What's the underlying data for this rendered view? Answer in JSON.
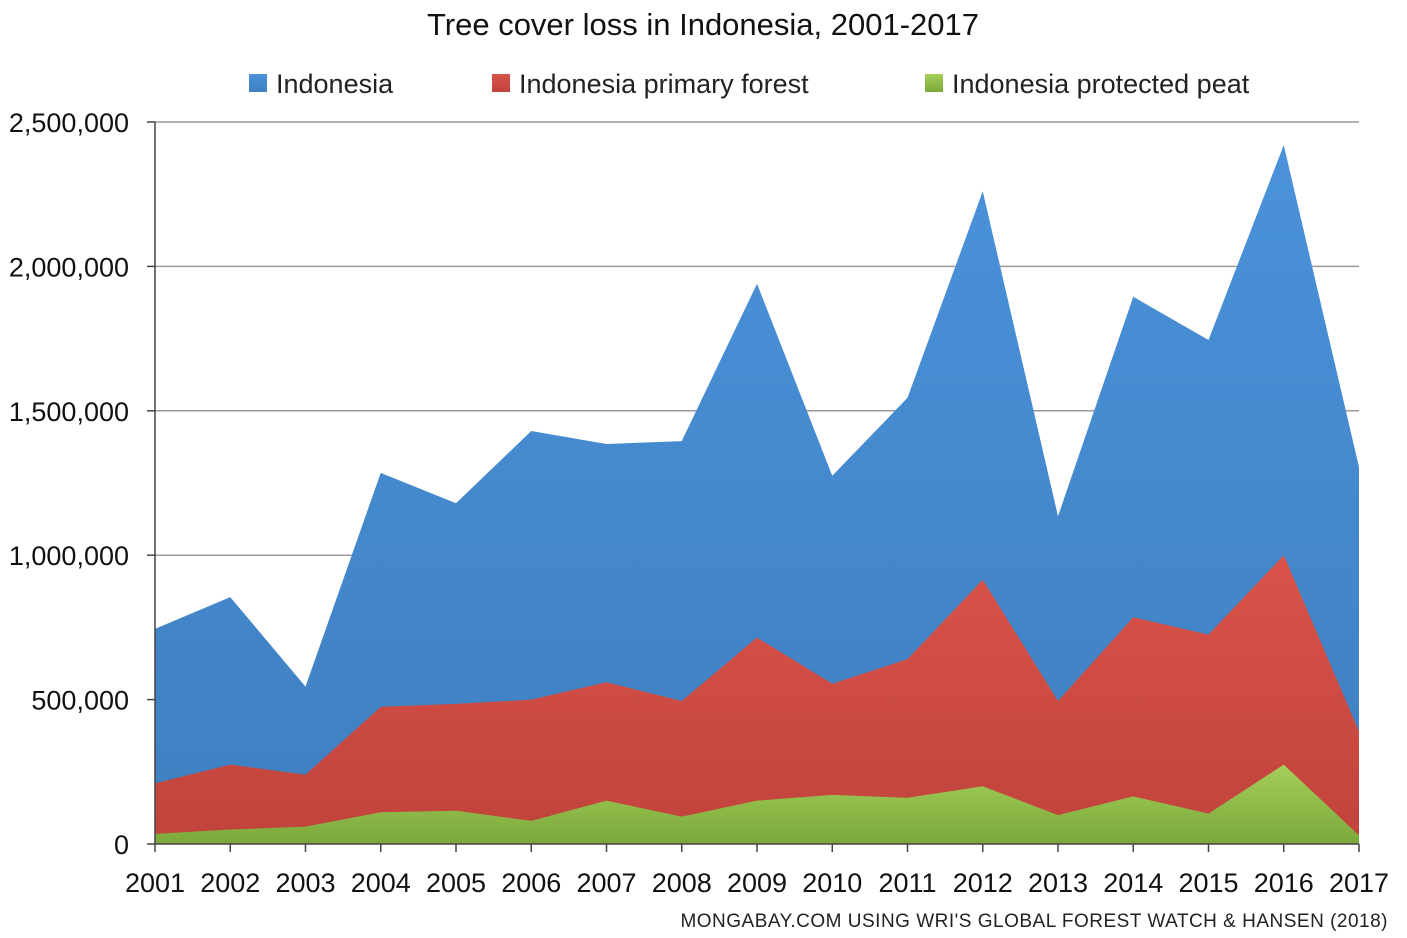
{
  "chart_data": {
    "type": "area",
    "title": "Tree cover loss in Indonesia, 2001-2017",
    "xlabel": "",
    "ylabel": "",
    "ylim": [
      0,
      2500000
    ],
    "yticks": [
      0,
      500000,
      1000000,
      1500000,
      2000000,
      2500000
    ],
    "ytick_labels": [
      "0",
      "500,000",
      "1,000,000",
      "1,500,000",
      "2,000,000",
      "2,500,000"
    ],
    "grid": true,
    "legend_position": "top",
    "categories": [
      "2001",
      "2002",
      "2003",
      "2004",
      "2005",
      "2006",
      "2007",
      "2008",
      "2009",
      "2010",
      "2011",
      "2012",
      "2013",
      "2014",
      "2015",
      "2016",
      "2017"
    ],
    "series": [
      {
        "name": "Indonesia",
        "color": "#3f7fc0",
        "color_light": "#4a92da",
        "values": [
          745000,
          855000,
          545000,
          1285000,
          1180000,
          1430000,
          1385000,
          1395000,
          1940000,
          1275000,
          1545000,
          2260000,
          1135000,
          1895000,
          1745000,
          2420000,
          1305000
        ]
      },
      {
        "name": "Indonesia primary forest",
        "color": "#c0433b",
        "color_light": "#d9534a",
        "values": [
          210000,
          275000,
          240000,
          475000,
          485000,
          500000,
          560000,
          495000,
          715000,
          555000,
          640000,
          915000,
          495000,
          785000,
          725000,
          1000000,
          390000
        ]
      },
      {
        "name": "Indonesia protected peat",
        "color": "#7aa83a",
        "color_light": "#a5cf5a",
        "values": [
          35000,
          50000,
          60000,
          110000,
          115000,
          80000,
          150000,
          95000,
          150000,
          170000,
          160000,
          200000,
          100000,
          165000,
          105000,
          275000,
          30000
        ]
      }
    ]
  },
  "source_note": "MONGABAY.COM USING WRI'S GLOBAL FOREST WATCH & HANSEN (2018)"
}
